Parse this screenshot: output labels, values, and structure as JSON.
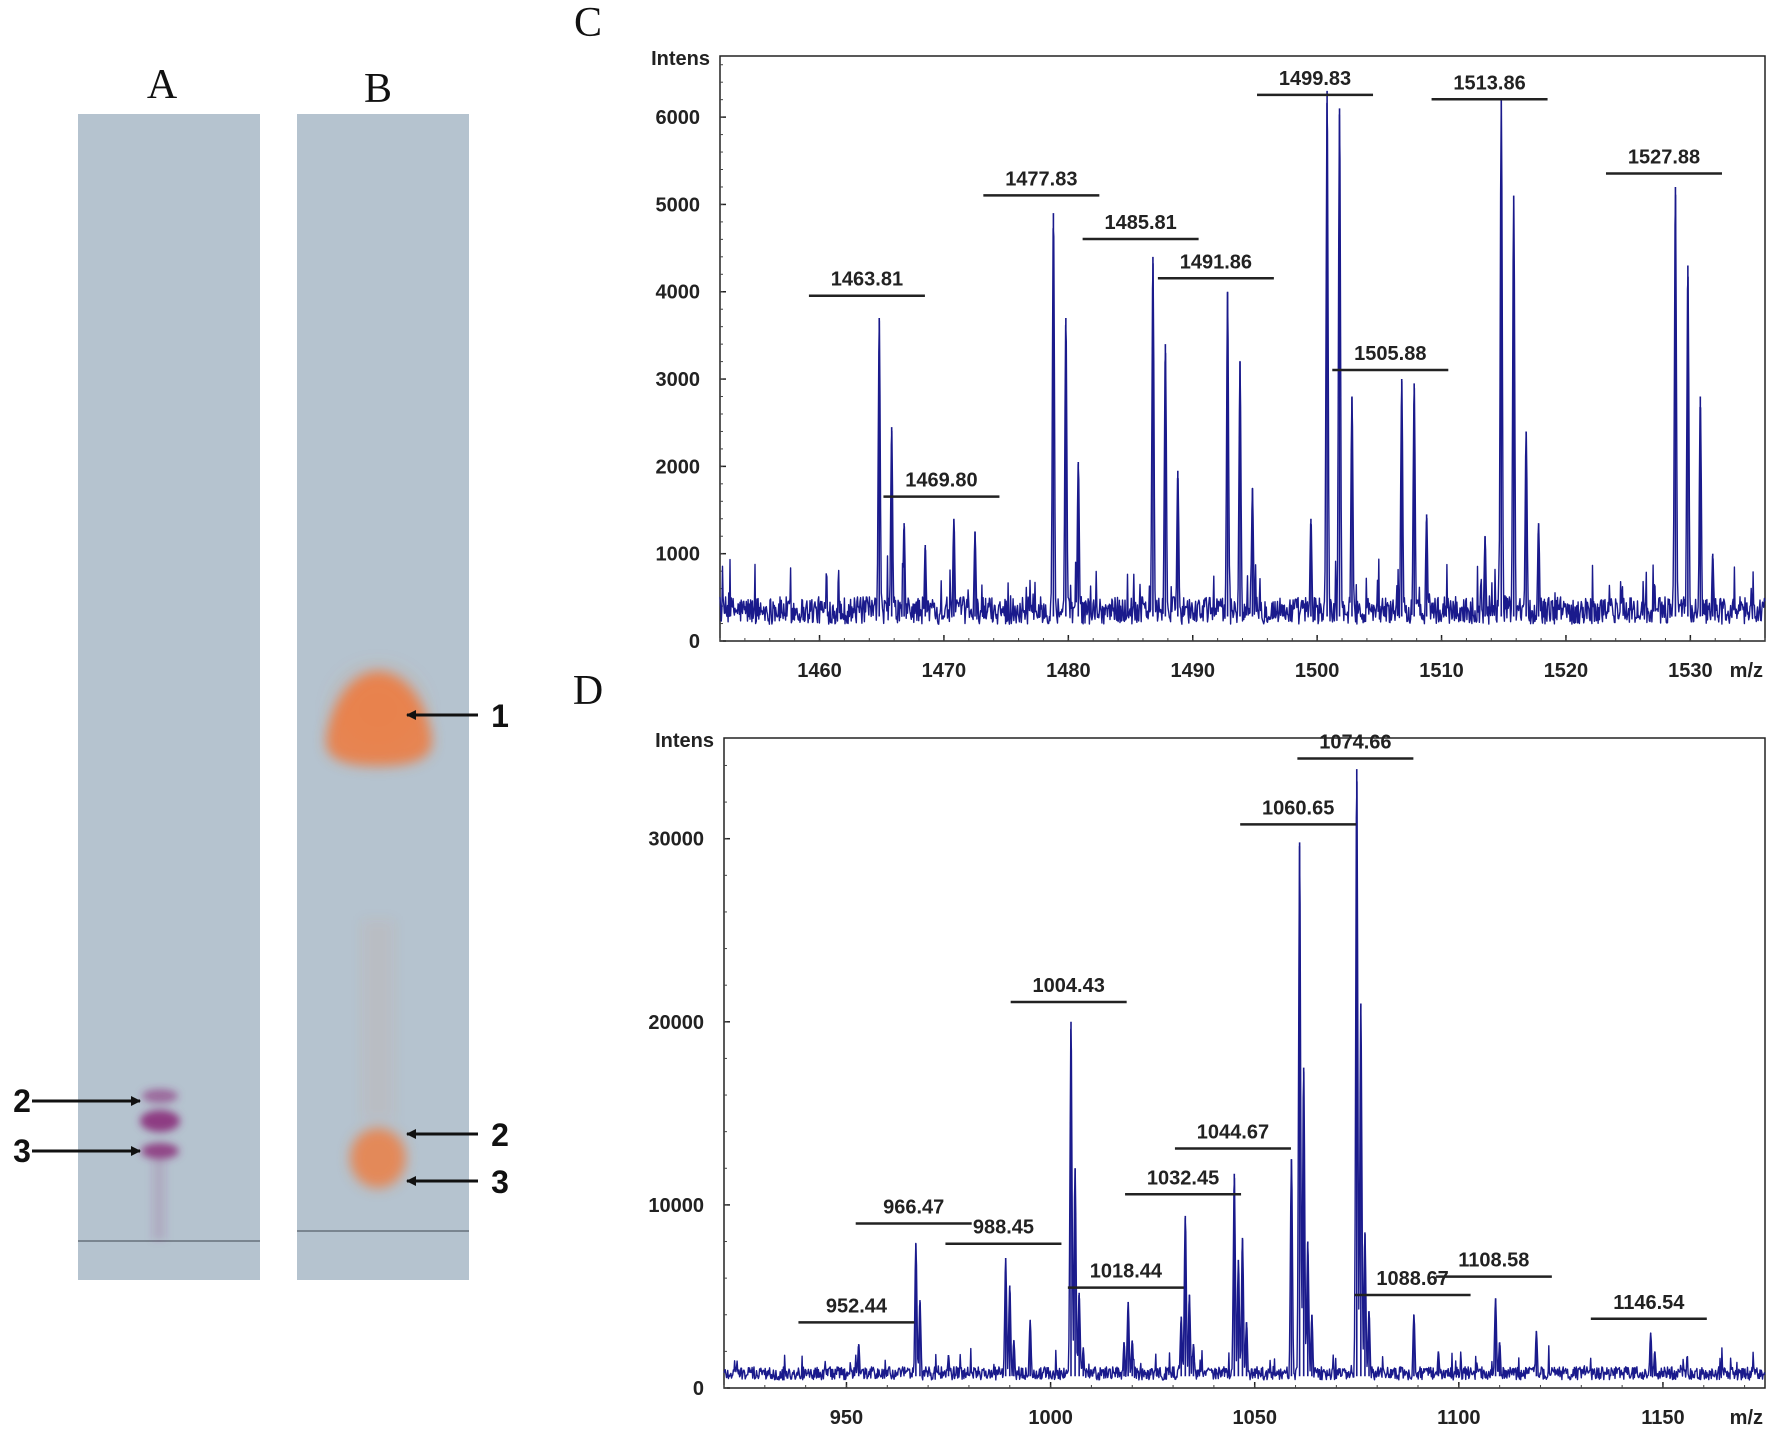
{
  "panels": {
    "A": "A",
    "B": "B",
    "C": "C",
    "D": "D"
  },
  "tlc": {
    "plate_color": "#b5c3cf",
    "lane_a_band_color": "#8a2f7a",
    "lane_b_band_color": "#ef7a3c",
    "lane_a_labels": [
      "2",
      "3"
    ],
    "lane_b_labels": [
      "1",
      "2",
      "3"
    ]
  },
  "chart_data": [
    {
      "type": "line",
      "panel": "C",
      "ylabel": "Intens",
      "xlabel": "m/z",
      "line_color": "#1a1a8c",
      "xlim": [
        1452,
        1536
      ],
      "ylim": [
        0,
        6700
      ],
      "x_ticks": [
        1460,
        1470,
        1480,
        1490,
        1500,
        1510,
        1520,
        1530
      ],
      "y_ticks": [
        0,
        1000,
        2000,
        3000,
        4000,
        5000,
        6000
      ],
      "baseline": 350,
      "peaks": [
        {
          "x": 1464.8,
          "y": 3700
        },
        {
          "x": 1465.8,
          "y": 2450
        },
        {
          "x": 1466.8,
          "y": 1350
        },
        {
          "x": 1468.5,
          "y": 1100
        },
        {
          "x": 1470.8,
          "y": 1400
        },
        {
          "x": 1472.5,
          "y": 1250
        },
        {
          "x": 1478.8,
          "y": 4900
        },
        {
          "x": 1479.8,
          "y": 3700
        },
        {
          "x": 1480.8,
          "y": 2050
        },
        {
          "x": 1486.8,
          "y": 4400
        },
        {
          "x": 1487.8,
          "y": 3400
        },
        {
          "x": 1488.8,
          "y": 1950
        },
        {
          "x": 1492.8,
          "y": 4000
        },
        {
          "x": 1493.8,
          "y": 3200
        },
        {
          "x": 1494.8,
          "y": 1750
        },
        {
          "x": 1499.5,
          "y": 1400
        },
        {
          "x": 1500.8,
          "y": 6300
        },
        {
          "x": 1501.8,
          "y": 6100
        },
        {
          "x": 1502.8,
          "y": 2800
        },
        {
          "x": 1506.8,
          "y": 3000
        },
        {
          "x": 1507.8,
          "y": 2950
        },
        {
          "x": 1508.8,
          "y": 1450
        },
        {
          "x": 1513.5,
          "y": 1200
        },
        {
          "x": 1514.8,
          "y": 6200
        },
        {
          "x": 1515.8,
          "y": 5100
        },
        {
          "x": 1516.8,
          "y": 2400
        },
        {
          "x": 1517.8,
          "y": 1350
        },
        {
          "x": 1528.8,
          "y": 5200
        },
        {
          "x": 1529.8,
          "y": 4300
        },
        {
          "x": 1530.8,
          "y": 2800
        },
        {
          "x": 1531.8,
          "y": 1000
        }
      ],
      "annotations": [
        {
          "label": "1463.81",
          "x": 1463.81,
          "y": 4000
        },
        {
          "label": "1469.80",
          "x": 1469.8,
          "y": 1700
        },
        {
          "label": "1477.83",
          "x": 1477.83,
          "y": 5150
        },
        {
          "label": "1485.81",
          "x": 1485.81,
          "y": 4650
        },
        {
          "label": "1491.86",
          "x": 1491.86,
          "y": 4200
        },
        {
          "label": "1499.83",
          "x": 1499.83,
          "y": 6300
        },
        {
          "label": "1505.88",
          "x": 1505.88,
          "y": 3150
        },
        {
          "label": "1513.86",
          "x": 1513.86,
          "y": 6250
        },
        {
          "label": "1527.88",
          "x": 1527.88,
          "y": 5400
        }
      ]
    },
    {
      "type": "line",
      "panel": "D",
      "ylabel": "Intens",
      "xlabel": "m/z",
      "line_color": "#1a1a8c",
      "xlim": [
        920,
        1175
      ],
      "ylim": [
        0,
        35500
      ],
      "x_ticks": [
        950,
        1000,
        1050,
        1100,
        1150
      ],
      "y_ticks": [
        0,
        10000,
        20000,
        30000
      ],
      "baseline": 800,
      "peaks": [
        {
          "x": 953,
          "y": 2400
        },
        {
          "x": 967,
          "y": 7900
        },
        {
          "x": 968,
          "y": 4800
        },
        {
          "x": 975,
          "y": 1800
        },
        {
          "x": 989,
          "y": 7100
        },
        {
          "x": 990,
          "y": 5600
        },
        {
          "x": 991,
          "y": 2600
        },
        {
          "x": 995,
          "y": 3700
        },
        {
          "x": 1005,
          "y": 20000
        },
        {
          "x": 1006,
          "y": 12000
        },
        {
          "x": 1007,
          "y": 5200
        },
        {
          "x": 1008,
          "y": 2200
        },
        {
          "x": 1018,
          "y": 2500
        },
        {
          "x": 1019,
          "y": 4700
        },
        {
          "x": 1020,
          "y": 2600
        },
        {
          "x": 1032,
          "y": 3900
        },
        {
          "x": 1033,
          "y": 9400
        },
        {
          "x": 1034,
          "y": 5100
        },
        {
          "x": 1035,
          "y": 2400
        },
        {
          "x": 1045,
          "y": 11700
        },
        {
          "x": 1046,
          "y": 7000
        },
        {
          "x": 1047,
          "y": 8200
        },
        {
          "x": 1048,
          "y": 3600
        },
        {
          "x": 1059,
          "y": 12500
        },
        {
          "x": 1061,
          "y": 29800
        },
        {
          "x": 1062,
          "y": 17500
        },
        {
          "x": 1063,
          "y": 8000
        },
        {
          "x": 1064,
          "y": 4000
        },
        {
          "x": 1075,
          "y": 33800
        },
        {
          "x": 1076,
          "y": 21000
        },
        {
          "x": 1077,
          "y": 8500
        },
        {
          "x": 1078,
          "y": 4200
        },
        {
          "x": 1089,
          "y": 4000
        },
        {
          "x": 1095,
          "y": 2000
        },
        {
          "x": 1109,
          "y": 4900
        },
        {
          "x": 1110,
          "y": 2500
        },
        {
          "x": 1119,
          "y": 3100
        },
        {
          "x": 1147,
          "y": 3000
        },
        {
          "x": 1148,
          "y": 2000
        }
      ],
      "annotations": [
        {
          "label": "952.44",
          "x": 952.44,
          "y": 3800
        },
        {
          "label": "966.47",
          "x": 966.47,
          "y": 9200
        },
        {
          "label": "988.45",
          "x": 988.45,
          "y": 8100
        },
        {
          "label": "1004.43",
          "x": 1004.43,
          "y": 21300
        },
        {
          "label": "1018.44",
          "x": 1018.44,
          "y": 5700
        },
        {
          "label": "1032.45",
          "x": 1032.45,
          "y": 10800
        },
        {
          "label": "1044.67",
          "x": 1044.67,
          "y": 13300
        },
        {
          "label": "1060.65",
          "x": 1060.65,
          "y": 31000
        },
        {
          "label": "1074.66",
          "x": 1074.66,
          "y": 34600
        },
        {
          "label": "1088.67",
          "x": 1088.67,
          "y": 5300
        },
        {
          "label": "1108.58",
          "x": 1108.58,
          "y": 6300
        },
        {
          "label": "1146.54",
          "x": 1146.54,
          "y": 4000
        }
      ]
    }
  ]
}
